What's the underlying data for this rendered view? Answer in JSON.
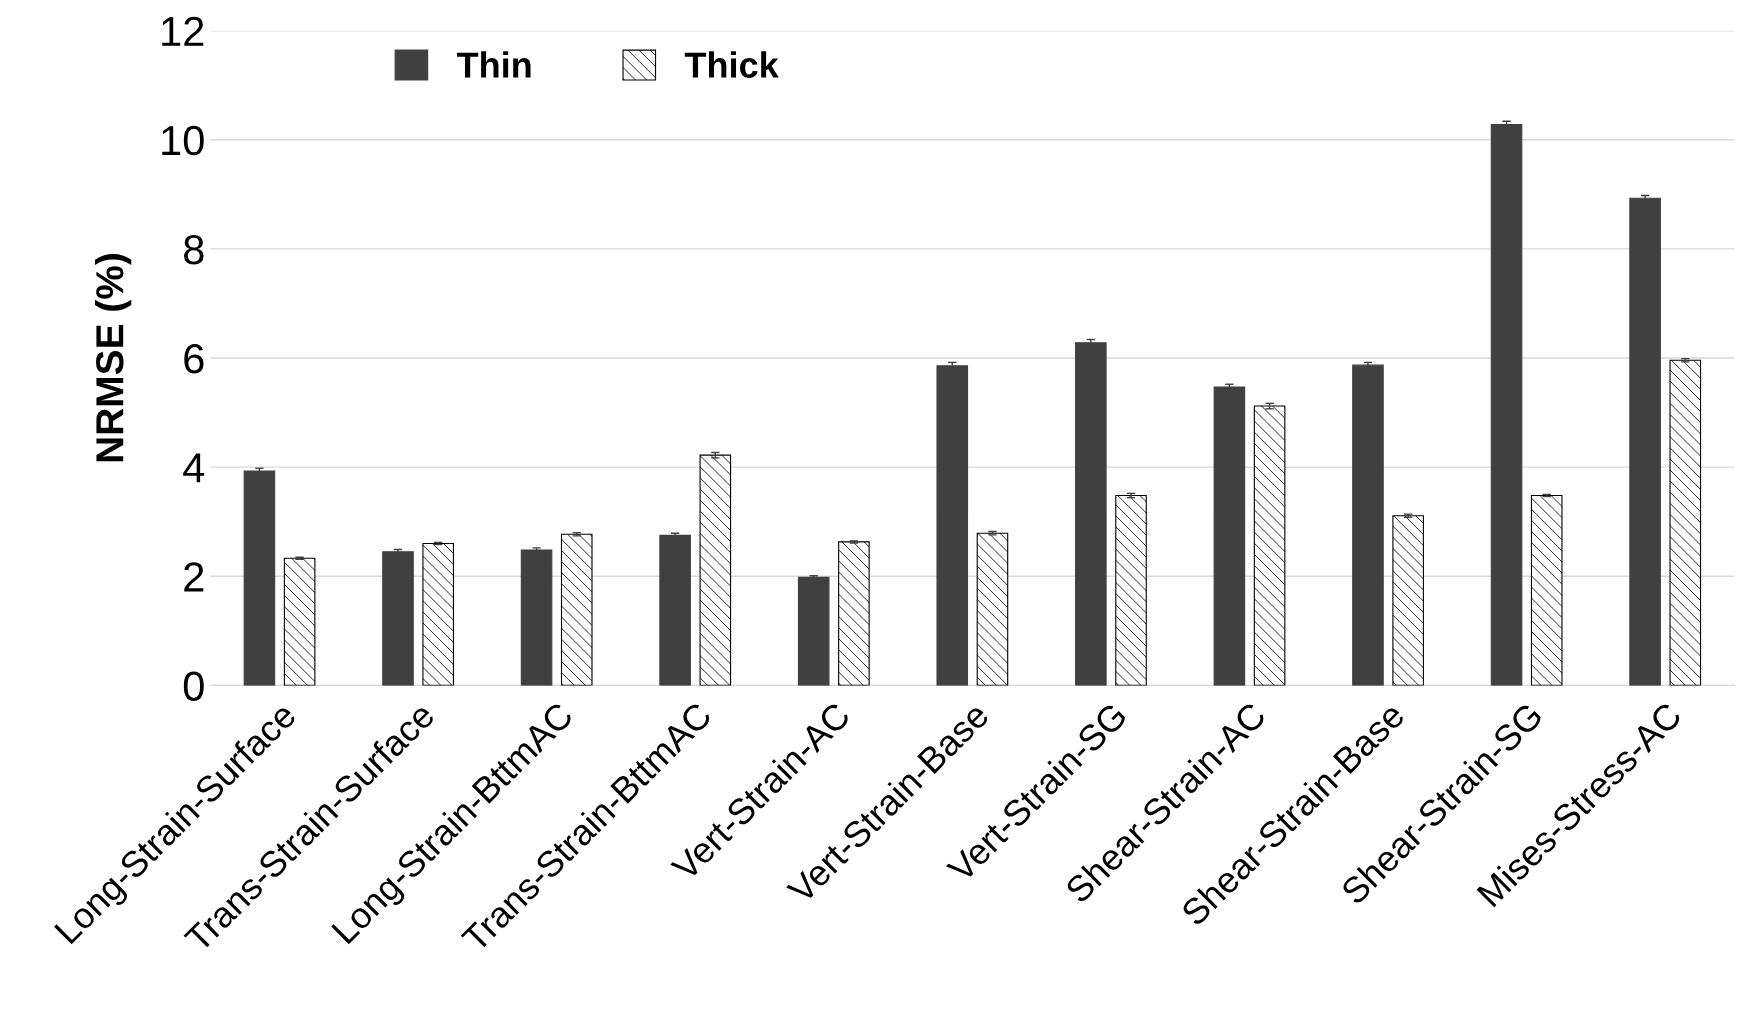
{
  "chart_data": {
    "type": "bar",
    "ylabel": "NRMSE (%)",
    "categories": [
      "Long-Strain-Surface",
      "Trans-Strain-Surface",
      "Long-Strain-BttmAC",
      "Trans-Strain-BttmAC",
      "Vert-Strain-AC",
      "Vert-Strain-Base",
      "Vert-Strain-SG",
      "Shear-Strain-AC",
      "Shear-Strain-Base",
      "Shear-Strain-SG",
      "Mises-Stress-AC"
    ],
    "series": [
      {
        "name": "Thin",
        "color": "#404040",
        "values": [
          3.93,
          2.45,
          2.48,
          2.75,
          1.98,
          5.86,
          6.28,
          5.47,
          5.87,
          10.28,
          8.93
        ],
        "errors": [
          0.05,
          0.04,
          0.04,
          0.04,
          0.03,
          0.06,
          0.06,
          0.05,
          0.05,
          0.06,
          0.05
        ]
      },
      {
        "name": "Thick",
        "color": "#000000",
        "values": [
          2.33,
          2.6,
          2.77,
          4.22,
          2.63,
          2.79,
          3.48,
          5.12,
          3.11,
          3.48,
          5.96
        ],
        "errors": [
          0.02,
          0.02,
          0.03,
          0.05,
          0.02,
          0.03,
          0.04,
          0.05,
          0.03,
          0.02,
          0.03
        ]
      }
    ],
    "ylim": [
      0,
      12
    ],
    "yticks": [
      0,
      2,
      4,
      6,
      8,
      10,
      12
    ],
    "grid": "y",
    "legend": "top left"
  }
}
